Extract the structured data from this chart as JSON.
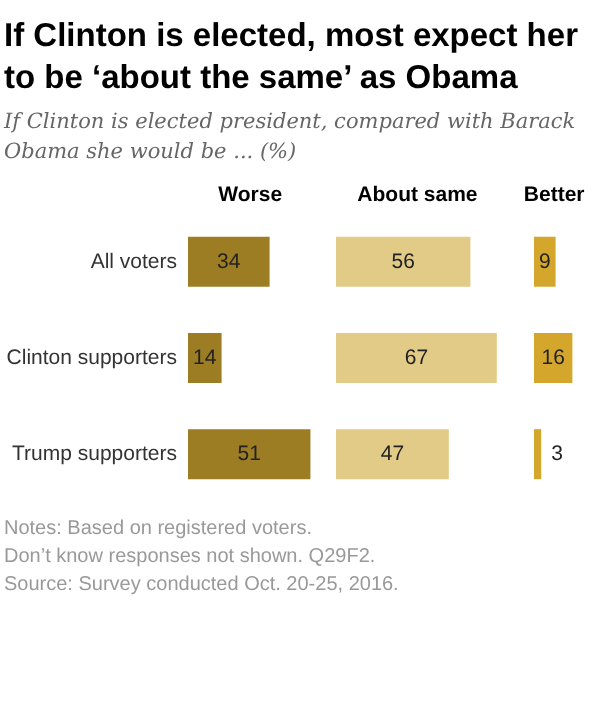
{
  "chart_data": [
    {
      "type": "bar",
      "orientation": "horizontal",
      "title": "If Clinton is elected, most expect her to be ‘about the same’ as Obama",
      "subtitle": "If Clinton is elected president, compared with Barack Obama she would be ... (%)",
      "annotations": [
        "Notes: Based on registered voters.",
        "Don’t know responses not shown. Q29F2.",
        "Source: Survey conducted Oct. 20-25, 2016."
      ],
      "xlabel": "Worse",
      "categories": [
        "All voters",
        "Clinton supporters",
        "Trump supporters"
      ],
      "values": [
        34,
        14,
        51
      ],
      "color": "#9c7d23",
      "data_labels": true,
      "tick_labels": "y"
    },
    {
      "type": "bar",
      "orientation": "horizontal",
      "xlabel": "About same",
      "categories": [
        "All voters",
        "Clinton supporters",
        "Trump supporters"
      ],
      "values": [
        56,
        67,
        47
      ],
      "color": "#e2cb86",
      "data_labels": true,
      "tick_labels": false
    },
    {
      "type": "bar",
      "orientation": "horizontal",
      "xlabel": "Better",
      "categories": [
        "All voters",
        "Clinton supporters",
        "Trump supporters"
      ],
      "values": [
        9,
        16,
        3
      ],
      "color": "#d4a72c",
      "data_labels": true,
      "tick_labels": false
    }
  ]
}
